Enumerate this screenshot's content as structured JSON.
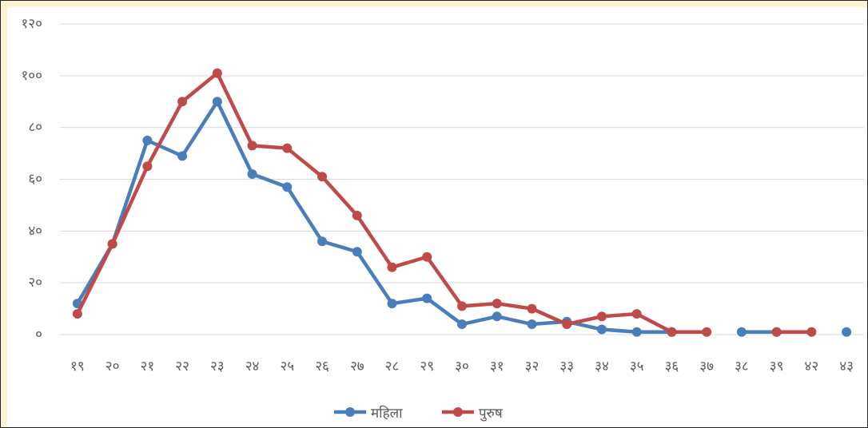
{
  "chart_data": {
    "type": "line",
    "categories": [
      "१९",
      "२०",
      "२१",
      "२२",
      "२३",
      "२४",
      "२५",
      "२६",
      "२७",
      "२८",
      "२९",
      "३०",
      "३१",
      "३२",
      "३३",
      "३४",
      "३५",
      "३६",
      "३७",
      "३८",
      "३९",
      "४२",
      "४३"
    ],
    "series": [
      {
        "name": "महिला",
        "color": "#4a7ebb",
        "values": [
          12,
          35,
          75,
          69,
          90,
          62,
          57,
          36,
          32,
          12,
          14,
          4,
          7,
          4,
          5,
          2,
          1,
          1,
          null,
          1,
          1,
          null,
          1
        ]
      },
      {
        "name": "पुरुष",
        "color": "#be4b48",
        "values": [
          8,
          35,
          65,
          90,
          101,
          73,
          72,
          61,
          46,
          26,
          30,
          11,
          12,
          10,
          4,
          7,
          8,
          1,
          1,
          null,
          1,
          1,
          null
        ]
      }
    ],
    "ylim": [
      0,
      120
    ],
    "yticks": [
      {
        "value": 0,
        "label": "०"
      },
      {
        "value": 20,
        "label": "२०"
      },
      {
        "value": 40,
        "label": "४०"
      },
      {
        "value": 60,
        "label": "६०"
      },
      {
        "value": 80,
        "label": "८०"
      },
      {
        "value": 100,
        "label": "१००"
      },
      {
        "value": 120,
        "label": "१२०"
      }
    ],
    "grid": true,
    "legend": "bottom"
  }
}
